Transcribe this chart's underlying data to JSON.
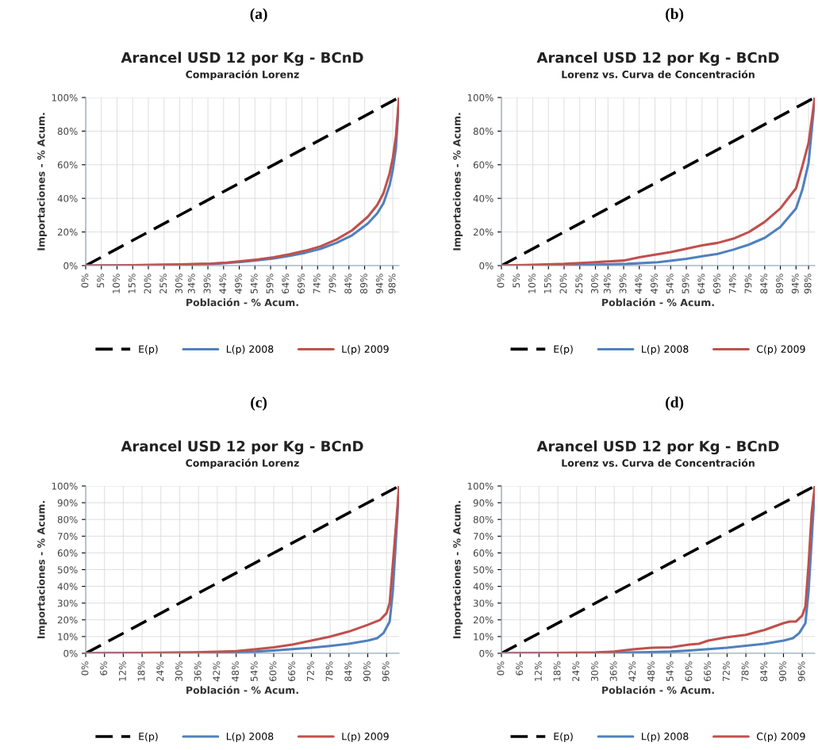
{
  "chart_data": [
    {
      "type": "line",
      "title": "Arancel USD 12 por Kg - BCnD",
      "subtitle": "Comparación Lorenz",
      "xlabel": "Población - % Acum.",
      "ylabel": "Importaciones - % Acum.",
      "annotations": [
        "(a)"
      ],
      "xlim": [
        0,
        100
      ],
      "ylim": [
        0,
        100
      ],
      "xticks": [
        {
          "value": 0,
          "label": "0%"
        },
        {
          "value": 5,
          "label": "5%"
        },
        {
          "value": 10,
          "label": "10%"
        },
        {
          "value": 15,
          "label": "15%"
        },
        {
          "value": 20,
          "label": "20%"
        },
        {
          "value": 25,
          "label": "25%"
        },
        {
          "value": 30,
          "label": "30%"
        },
        {
          "value": 34,
          "label": "34%"
        },
        {
          "value": 39,
          "label": "39%"
        },
        {
          "value": 44,
          "label": "44%"
        },
        {
          "value": 49,
          "label": "49%"
        },
        {
          "value": 54,
          "label": "54%"
        },
        {
          "value": 59,
          "label": "59%"
        },
        {
          "value": 64,
          "label": "64%"
        },
        {
          "value": 69,
          "label": "69%"
        },
        {
          "value": 74,
          "label": "74%"
        },
        {
          "value": 79,
          "label": "79%"
        },
        {
          "value": 84,
          "label": "84%"
        },
        {
          "value": 89,
          "label": "89%"
        },
        {
          "value": 94,
          "label": "94%"
        },
        {
          "value": 98,
          "label": "98%"
        }
      ],
      "yticks": [
        {
          "value": 0,
          "label": "0%"
        },
        {
          "value": 20,
          "label": "20%"
        },
        {
          "value": 40,
          "label": "40%"
        },
        {
          "value": 60,
          "label": "60%"
        },
        {
          "value": 80,
          "label": "80%"
        },
        {
          "value": 100,
          "label": "100%"
        }
      ],
      "grid": true,
      "legend": "bottom",
      "series": [
        {
          "name": "E(p)",
          "color": "#000000",
          "line_style": "dashed",
          "x": [
            0,
            100
          ],
          "values": [
            0,
            100
          ]
        },
        {
          "name": "L(p) 2008",
          "color": "#4f81bd",
          "x": [
            0,
            10,
            20,
            30,
            40,
            45,
            50,
            55,
            60,
            65,
            70,
            75,
            80,
            85,
            90,
            93,
            95,
            97,
            98,
            99,
            100
          ],
          "values": [
            0,
            0.1,
            0.3,
            0.6,
            1,
            1.5,
            2.3,
            3.2,
            4.3,
            5.8,
            7.6,
            10,
            13.5,
            18,
            25,
            31,
            37,
            48,
            57,
            70,
            100
          ]
        },
        {
          "name": "L(p) 2009",
          "color": "#c0504d",
          "x": [
            0,
            10,
            20,
            30,
            40,
            45,
            50,
            55,
            60,
            65,
            70,
            75,
            80,
            85,
            90,
            93,
            95,
            97,
            98,
            99,
            100
          ],
          "values": [
            0,
            0.1,
            0.3,
            0.7,
            1.2,
            1.8,
            2.7,
            3.7,
            5,
            6.7,
            8.8,
            11.5,
            15.5,
            21,
            29,
            36,
            43,
            55,
            64,
            77,
            100
          ]
        }
      ]
    },
    {
      "type": "line",
      "title": "Arancel USD 12 por Kg - BCnD",
      "subtitle": "Lorenz vs. Curva de Concentración",
      "xlabel": "Población - % Acum.",
      "ylabel": "Importaciones - % Acum.",
      "annotations": [
        "(b)"
      ],
      "xlim": [
        0,
        100
      ],
      "ylim": [
        0,
        100
      ],
      "xticks": [
        {
          "value": 0,
          "label": "0%"
        },
        {
          "value": 5,
          "label": "5%"
        },
        {
          "value": 10,
          "label": "10%"
        },
        {
          "value": 15,
          "label": "15%"
        },
        {
          "value": 20,
          "label": "20%"
        },
        {
          "value": 25,
          "label": "25%"
        },
        {
          "value": 30,
          "label": "30%"
        },
        {
          "value": 34,
          "label": "34%"
        },
        {
          "value": 39,
          "label": "39%"
        },
        {
          "value": 44,
          "label": "44%"
        },
        {
          "value": 49,
          "label": "49%"
        },
        {
          "value": 54,
          "label": "54%"
        },
        {
          "value": 59,
          "label": "59%"
        },
        {
          "value": 64,
          "label": "64%"
        },
        {
          "value": 69,
          "label": "69%"
        },
        {
          "value": 74,
          "label": "74%"
        },
        {
          "value": 79,
          "label": "79%"
        },
        {
          "value": 84,
          "label": "84%"
        },
        {
          "value": 89,
          "label": "89%"
        },
        {
          "value": 94,
          "label": "94%"
        },
        {
          "value": 98,
          "label": "98%"
        }
      ],
      "yticks": [
        {
          "value": 0,
          "label": "0%"
        },
        {
          "value": 20,
          "label": "20%"
        },
        {
          "value": 40,
          "label": "40%"
        },
        {
          "value": 60,
          "label": "60%"
        },
        {
          "value": 80,
          "label": "80%"
        },
        {
          "value": 100,
          "label": "100%"
        }
      ],
      "grid": true,
      "legend": "bottom",
      "series": [
        {
          "name": "E(p)",
          "color": "#000000",
          "line_style": "dashed",
          "x": [
            0,
            100
          ],
          "values": [
            0,
            100
          ]
        },
        {
          "name": "L(p) 2008",
          "color": "#4f81bd",
          "x": [
            0,
            10,
            20,
            30,
            40,
            50,
            59,
            64,
            69,
            74,
            79,
            84,
            89,
            94,
            96,
            98,
            100
          ],
          "values": [
            0,
            0.1,
            0.3,
            0.6,
            1,
            2,
            4,
            5.5,
            7,
            9.5,
            12.5,
            16.5,
            23,
            34,
            45,
            61,
            100
          ]
        },
        {
          "name": "C(p) 2009",
          "color": "#c0504d",
          "x": [
            0,
            10,
            20,
            30,
            34,
            39,
            44,
            49,
            54,
            59,
            64,
            69,
            74,
            79,
            84,
            89,
            94,
            96,
            98,
            100
          ],
          "values": [
            0,
            0.5,
            1,
            2,
            2.5,
            3,
            5,
            6.5,
            8,
            10,
            12,
            13.5,
            16,
            20,
            26,
            34,
            46,
            59,
            73,
            100
          ]
        }
      ]
    },
    {
      "type": "line",
      "title": "Arancel USD 12 por Kg - BCnD",
      "subtitle": "Comparación Lorenz",
      "xlabel": "Población - % Acum.",
      "ylabel": "Importaciones - % Acum.",
      "annotations": [
        "(c)"
      ],
      "xlim": [
        0,
        100
      ],
      "ylim": [
        0,
        100
      ],
      "xticks": [
        {
          "value": 0,
          "label": "0%"
        },
        {
          "value": 6,
          "label": "6%"
        },
        {
          "value": 12,
          "label": "12%"
        },
        {
          "value": 18,
          "label": "18%"
        },
        {
          "value": 24,
          "label": "24%"
        },
        {
          "value": 30,
          "label": "30%"
        },
        {
          "value": 36,
          "label": "36%"
        },
        {
          "value": 42,
          "label": "42%"
        },
        {
          "value": 48,
          "label": "48%"
        },
        {
          "value": 54,
          "label": "54%"
        },
        {
          "value": 60,
          "label": "60%"
        },
        {
          "value": 66,
          "label": "66%"
        },
        {
          "value": 72,
          "label": "72%"
        },
        {
          "value": 78,
          "label": "78%"
        },
        {
          "value": 84,
          "label": "84%"
        },
        {
          "value": 90,
          "label": "90%"
        },
        {
          "value": 96,
          "label": "96%"
        }
      ],
      "yticks": [
        {
          "value": 0,
          "label": "0%"
        },
        {
          "value": 10,
          "label": "10%"
        },
        {
          "value": 20,
          "label": "20%"
        },
        {
          "value": 30,
          "label": "30%"
        },
        {
          "value": 40,
          "label": "40%"
        },
        {
          "value": 50,
          "label": "50%"
        },
        {
          "value": 60,
          "label": "60%"
        },
        {
          "value": 70,
          "label": "70%"
        },
        {
          "value": 80,
          "label": "80%"
        },
        {
          "value": 90,
          "label": "90%"
        },
        {
          "value": 100,
          "label": "100%"
        }
      ],
      "grid": true,
      "legend": "bottom",
      "series": [
        {
          "name": "E(p)",
          "color": "#000000",
          "line_style": "dashed",
          "x": [
            0,
            100
          ],
          "values": [
            0,
            100
          ]
        },
        {
          "name": "L(p) 2008",
          "color": "#4f81bd",
          "x": [
            0,
            12,
            24,
            36,
            48,
            54,
            60,
            66,
            72,
            78,
            84,
            90,
            93,
            95,
            97,
            98,
            99,
            100
          ],
          "values": [
            0,
            0.1,
            0.2,
            0.4,
            0.7,
            1,
            1.7,
            2.5,
            3.3,
            4.4,
            5.7,
            7.6,
            9,
            12,
            19,
            37,
            68,
            100
          ]
        },
        {
          "name": "L(p) 2009",
          "color": "#c0504d",
          "x": [
            0,
            12,
            24,
            36,
            42,
            48,
            54,
            60,
            66,
            72,
            78,
            84,
            90,
            94,
            96,
            97,
            98,
            99,
            100
          ],
          "values": [
            0,
            0.1,
            0.3,
            0.6,
            0.9,
            1.3,
            2.4,
            3.6,
            5.2,
            7.6,
            10,
            13,
            17,
            20,
            24,
            30,
            53,
            76,
            100
          ]
        }
      ]
    },
    {
      "type": "line",
      "title": "Arancel USD 12 por Kg - BCnD",
      "subtitle": "Lorenz vs. Curva de Concentración",
      "xlabel": "Población - % Acum.",
      "ylabel": "Importaciones - % Acum.",
      "annotations": [
        "(d)"
      ],
      "xlim": [
        0,
        100
      ],
      "ylim": [
        0,
        100
      ],
      "xticks": [
        {
          "value": 0,
          "label": "0%"
        },
        {
          "value": 6,
          "label": "6%"
        },
        {
          "value": 12,
          "label": "12%"
        },
        {
          "value": 18,
          "label": "18%"
        },
        {
          "value": 24,
          "label": "24%"
        },
        {
          "value": 30,
          "label": "30%"
        },
        {
          "value": 36,
          "label": "36%"
        },
        {
          "value": 42,
          "label": "42%"
        },
        {
          "value": 48,
          "label": "48%"
        },
        {
          "value": 54,
          "label": "54%"
        },
        {
          "value": 60,
          "label": "60%"
        },
        {
          "value": 66,
          "label": "66%"
        },
        {
          "value": 72,
          "label": "72%"
        },
        {
          "value": 78,
          "label": "78%"
        },
        {
          "value": 84,
          "label": "84%"
        },
        {
          "value": 90,
          "label": "90%"
        },
        {
          "value": 96,
          "label": "96%"
        }
      ],
      "yticks": [
        {
          "value": 0,
          "label": "0%"
        },
        {
          "value": 10,
          "label": "10%"
        },
        {
          "value": 20,
          "label": "20%"
        },
        {
          "value": 30,
          "label": "30%"
        },
        {
          "value": 40,
          "label": "40%"
        },
        {
          "value": 50,
          "label": "50%"
        },
        {
          "value": 60,
          "label": "60%"
        },
        {
          "value": 70,
          "label": "70%"
        },
        {
          "value": 80,
          "label": "80%"
        },
        {
          "value": 90,
          "label": "90%"
        },
        {
          "value": 100,
          "label": "100%"
        }
      ],
      "grid": true,
      "legend": "bottom",
      "series": [
        {
          "name": "E(p)",
          "color": "#000000",
          "line_style": "dashed",
          "x": [
            0,
            100
          ],
          "values": [
            0,
            100
          ]
        },
        {
          "name": "L(p) 2008",
          "color": "#4f81bd",
          "x": [
            0,
            12,
            24,
            36,
            48,
            54,
            60,
            72,
            84,
            90,
            93,
            95,
            97,
            98,
            99,
            100
          ],
          "values": [
            0,
            0.1,
            0.2,
            0.4,
            0.7,
            1,
            1.7,
            3.3,
            5.7,
            7.6,
            9,
            12,
            18,
            37,
            68,
            100
          ]
        },
        {
          "name": "C(p) 2009",
          "color": "#c0504d",
          "x": [
            0,
            12,
            24,
            30,
            36,
            42,
            48,
            54,
            60,
            63,
            66,
            72,
            78,
            84,
            90,
            92,
            94,
            96,
            97,
            98,
            99,
            100
          ],
          "values": [
            0,
            0.1,
            0.3,
            0.5,
            1,
            2.4,
            3.3,
            3.6,
            5.2,
            5.7,
            7.6,
            9.6,
            11,
            14,
            18,
            19,
            19,
            22.6,
            28,
            53,
            84,
            100
          ]
        }
      ]
    }
  ]
}
